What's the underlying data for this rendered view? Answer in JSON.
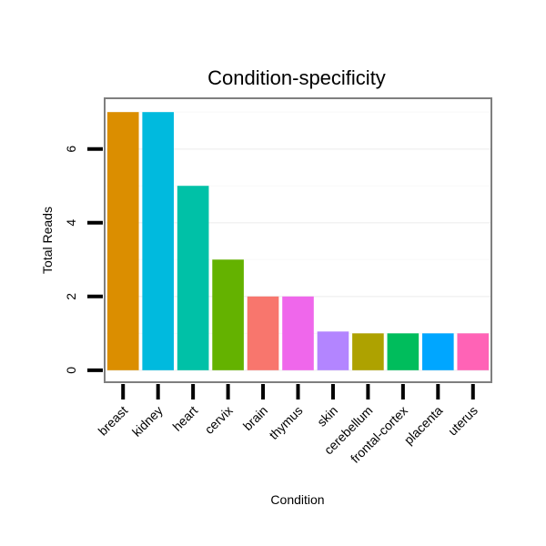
{
  "chart_data": {
    "type": "bar",
    "title": "Condition-specificity",
    "xlabel": "Condition",
    "ylabel": "Total Reads",
    "categories": [
      "breast",
      "kidney",
      "heart",
      "cervix",
      "brain",
      "thymus",
      "skin",
      "cerebellum",
      "frontal-cortex",
      "placenta",
      "uterus"
    ],
    "values": [
      7,
      7,
      5,
      3,
      2,
      2,
      1.05,
      1,
      1,
      1,
      1
    ],
    "colors": [
      "#DB8E00",
      "#00BADE",
      "#00C1A7",
      "#64B200",
      "#F8766D",
      "#EF67EB",
      "#B385FF",
      "#AEA200",
      "#00BD5C",
      "#00A6FF",
      "#FF63B6"
    ],
    "yticks": [
      0,
      2,
      4,
      6
    ],
    "ylim": [
      -0.3,
      7.35
    ],
    "grid": true,
    "legend": "none"
  }
}
